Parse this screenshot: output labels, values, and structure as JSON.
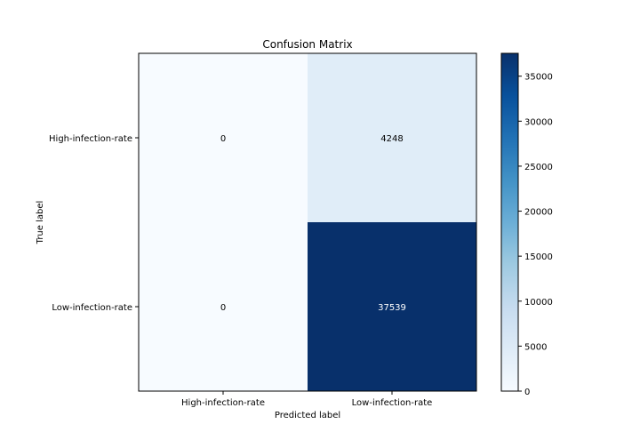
{
  "chart_data": {
    "type": "heatmap",
    "title": "Confusion Matrix",
    "xlabel": "Predicted label",
    "ylabel": "True label",
    "x_categories": [
      "High-infection-rate",
      "Low-infection-rate"
    ],
    "y_categories": [
      "High-infection-rate",
      "Low-infection-rate"
    ],
    "values": [
      [
        0,
        4248
      ],
      [
        0,
        37539
      ]
    ],
    "colormap": "Blues",
    "color_range": [
      0,
      37539
    ],
    "colorbar_ticks": [
      0,
      5000,
      10000,
      15000,
      20000,
      25000,
      30000,
      35000
    ],
    "colors": {
      "low": "#f7fbff",
      "high": "#08306b"
    },
    "grid": false
  }
}
